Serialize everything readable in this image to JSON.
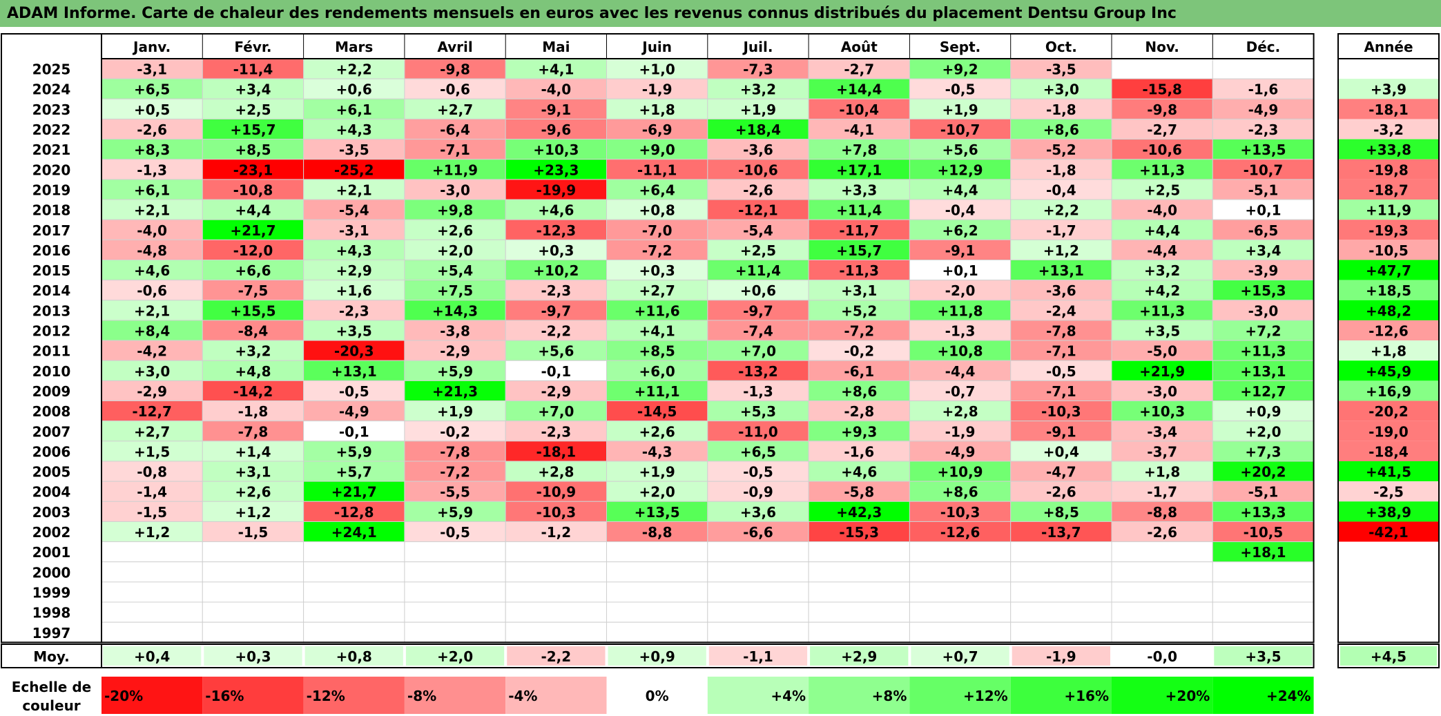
{
  "title": "ADAM Informe. Carte de chaleur des rendements mensuels en euros avec les revenus connus distribués du placement Dentsu Group Inc",
  "chart_data": {
    "type": "heatmap",
    "months": [
      "Janv.",
      "Févr.",
      "Mars",
      "Avril",
      "Mai",
      "Juin",
      "Juil.",
      "Août",
      "Sept.",
      "Oct.",
      "Nov.",
      "Déc."
    ],
    "annual_header": "Année",
    "years": [
      "2025",
      "2024",
      "2023",
      "2022",
      "2021",
      "2020",
      "2019",
      "2018",
      "2017",
      "2016",
      "2015",
      "2014",
      "2013",
      "2012",
      "2011",
      "2010",
      "2009",
      "2008",
      "2007",
      "2006",
      "2005",
      "2004",
      "2003",
      "2002",
      "2001",
      "2000",
      "1999",
      "1998",
      "1997"
    ],
    "values": [
      [
        "-3,1",
        "-11,4",
        "+2,2",
        "-9,8",
        "+4,1",
        "+1,0",
        "-7,3",
        "-2,7",
        "+9,2",
        "-3,5",
        "",
        ""
      ],
      [
        "+6,5",
        "+3,4",
        "+0,6",
        "-0,6",
        "-4,0",
        "-1,9",
        "+3,2",
        "+14,4",
        "-0,5",
        "+3,0",
        "-15,8",
        "-1,6"
      ],
      [
        "+0,5",
        "+2,5",
        "+6,1",
        "+2,7",
        "-9,1",
        "+1,8",
        "+1,9",
        "-10,4",
        "+1,9",
        "-1,8",
        "-9,8",
        "-4,9"
      ],
      [
        "-2,6",
        "+15,7",
        "+4,3",
        "-6,4",
        "-9,6",
        "-6,9",
        "+18,4",
        "-4,1",
        "-10,7",
        "+8,6",
        "-2,7",
        "-2,3"
      ],
      [
        "+8,3",
        "+8,5",
        "-3,5",
        "-7,1",
        "+10,3",
        "+9,0",
        "-3,6",
        "+7,8",
        "+5,6",
        "-5,2",
        "-10,6",
        "+13,5"
      ],
      [
        "-1,3",
        "-23,1",
        "-25,2",
        "+11,9",
        "+23,3",
        "-11,1",
        "-10,6",
        "+17,1",
        "+12,9",
        "-1,8",
        "+11,3",
        "-10,7"
      ],
      [
        "+6,1",
        "-10,8",
        "+2,1",
        "-3,0",
        "-19,9",
        "+6,4",
        "-2,6",
        "+3,3",
        "+4,4",
        "-0,4",
        "+2,5",
        "-5,1"
      ],
      [
        "+2,1",
        "+4,4",
        "-5,4",
        "+9,8",
        "+4,6",
        "+0,8",
        "-12,1",
        "+11,4",
        "-0,4",
        "+2,2",
        "-4,0",
        "+0,1"
      ],
      [
        "-4,0",
        "+21,7",
        "-3,1",
        "+2,6",
        "-12,3",
        "-7,0",
        "-5,4",
        "-11,7",
        "+6,2",
        "-1,7",
        "+4,4",
        "-6,5"
      ],
      [
        "-4,8",
        "-12,0",
        "+4,3",
        "+2,0",
        "+0,3",
        "-7,2",
        "+2,5",
        "+15,7",
        "-9,1",
        "+1,2",
        "-4,4",
        "+3,4"
      ],
      [
        "+4,6",
        "+6,6",
        "+2,9",
        "+5,4",
        "+10,2",
        "+0,3",
        "+11,4",
        "-11,3",
        "+0,1",
        "+13,1",
        "+3,2",
        "-3,9"
      ],
      [
        "-0,6",
        "-7,5",
        "+1,6",
        "+7,5",
        "-2,3",
        "+2,7",
        "+0,6",
        "+3,1",
        "-2,0",
        "-3,6",
        "+4,2",
        "+15,3"
      ],
      [
        "+2,1",
        "+15,5",
        "-2,3",
        "+14,3",
        "-9,7",
        "+11,6",
        "-9,7",
        "+5,2",
        "+11,8",
        "-2,4",
        "+11,3",
        "-3,0"
      ],
      [
        "+8,4",
        "-8,4",
        "+3,5",
        "-3,8",
        "-2,2",
        "+4,1",
        "-7,4",
        "-7,2",
        "-1,3",
        "-7,8",
        "+3,5",
        "+7,2"
      ],
      [
        "-4,2",
        "+3,2",
        "-20,3",
        "-2,9",
        "+5,6",
        "+8,5",
        "+7,0",
        "-0,2",
        "+10,8",
        "-7,1",
        "-5,0",
        "+11,3"
      ],
      [
        "+3,0",
        "+4,8",
        "+13,1",
        "+5,9",
        "-0,1",
        "+6,0",
        "-13,2",
        "-6,1",
        "-4,4",
        "-0,5",
        "+21,9",
        "+13,1"
      ],
      [
        "-2,9",
        "-14,2",
        "-0,5",
        "+21,3",
        "-2,9",
        "+11,1",
        "-1,3",
        "+8,6",
        "-0,7",
        "-7,1",
        "-3,0",
        "+12,7"
      ],
      [
        "-12,7",
        "-1,8",
        "-4,9",
        "+1,9",
        "+7,0",
        "-14,5",
        "+5,3",
        "-2,8",
        "+2,8",
        "-10,3",
        "+10,3",
        "+0,9"
      ],
      [
        "+2,7",
        "-7,8",
        "-0,1",
        "-0,2",
        "-2,3",
        "+2,6",
        "-11,0",
        "+9,3",
        "-1,9",
        "-9,1",
        "-3,4",
        "+2,0"
      ],
      [
        "+1,5",
        "+1,4",
        "+5,9",
        "-7,8",
        "-18,1",
        "-4,3",
        "+6,5",
        "-1,6",
        "-4,9",
        "+0,4",
        "-3,7",
        "+7,3"
      ],
      [
        "-0,8",
        "+3,1",
        "+5,7",
        "-7,2",
        "+2,8",
        "+1,9",
        "-0,5",
        "+4,6",
        "+10,9",
        "-4,7",
        "+1,8",
        "+20,2"
      ],
      [
        "-1,4",
        "+2,6",
        "+21,7",
        "-5,5",
        "-10,9",
        "+2,0",
        "-0,9",
        "-5,8",
        "+8,6",
        "-2,6",
        "-1,7",
        "-5,1"
      ],
      [
        "-1,5",
        "+1,2",
        "-12,8",
        "+5,9",
        "-10,3",
        "+13,5",
        "+3,6",
        "+42,3",
        "-10,3",
        "+8,5",
        "-8,8",
        "+13,3"
      ],
      [
        "+1,2",
        "-1,5",
        "+24,1",
        "-0,5",
        "-1,2",
        "-8,8",
        "-6,6",
        "-15,3",
        "-12,6",
        "-13,7",
        "-2,6",
        "-10,5"
      ],
      [
        "",
        "",
        "",
        "",
        "",
        "",
        "",
        "",
        "",
        "",
        "",
        "+18,1"
      ],
      [
        "",
        "",
        "",
        "",
        "",
        "",
        "",
        "",
        "",
        "",
        "",
        ""
      ],
      [
        "",
        "",
        "",
        "",
        "",
        "",
        "",
        "",
        "",
        "",
        "",
        ""
      ],
      [
        "",
        "",
        "",
        "",
        "",
        "",
        "",
        "",
        "",
        "",
        "",
        ""
      ],
      [
        "",
        "",
        "",
        "",
        "",
        "",
        "",
        "",
        "",
        "",
        "",
        ""
      ]
    ],
    "annual": [
      "",
      "+3,9",
      "-18,1",
      "-3,2",
      "+33,8",
      "-19,8",
      "-18,7",
      "+11,9",
      "-19,3",
      "-10,5",
      "+47,7",
      "+18,5",
      "+48,2",
      "-12,6",
      "+1,8",
      "+45,9",
      "+16,9",
      "-20,2",
      "-19,0",
      "-18,4",
      "+41,5",
      "-2,5",
      "+38,9",
      "-42,1",
      "",
      "",
      "",
      "",
      ""
    ],
    "average_label": "Moy.",
    "averages": [
      "+0,4",
      "+0,3",
      "+0,8",
      "+2,0",
      "-2,2",
      "+0,9",
      "-1,1",
      "+2,9",
      "+0,7",
      "-1,9",
      "-0,0",
      "+3,5"
    ],
    "average_annual": "+4,5",
    "scale_label_line1": "Echelle de",
    "scale_label_line2": "couleur",
    "scale": [
      {
        "label": "-20%",
        "value": -20
      },
      {
        "label": "-16%",
        "value": -16
      },
      {
        "label": "-12%",
        "value": -12
      },
      {
        "label": "-8%",
        "value": -8
      },
      {
        "label": "-4%",
        "value": -4
      },
      {
        "label": "0%",
        "value": 0
      },
      {
        "label": "+4%",
        "value": 4
      },
      {
        "label": "+8%",
        "value": 8
      },
      {
        "label": "+12%",
        "value": 12
      },
      {
        "label": "+16%",
        "value": 16
      },
      {
        "label": "+20%",
        "value": 20
      },
      {
        "label": "+24%",
        "value": 24
      }
    ],
    "colors": {
      "negative_max": "#ff0000",
      "positive_max": "#00ff00",
      "neutral": "#ffffff",
      "title_bar": "#7dc57a"
    }
  }
}
